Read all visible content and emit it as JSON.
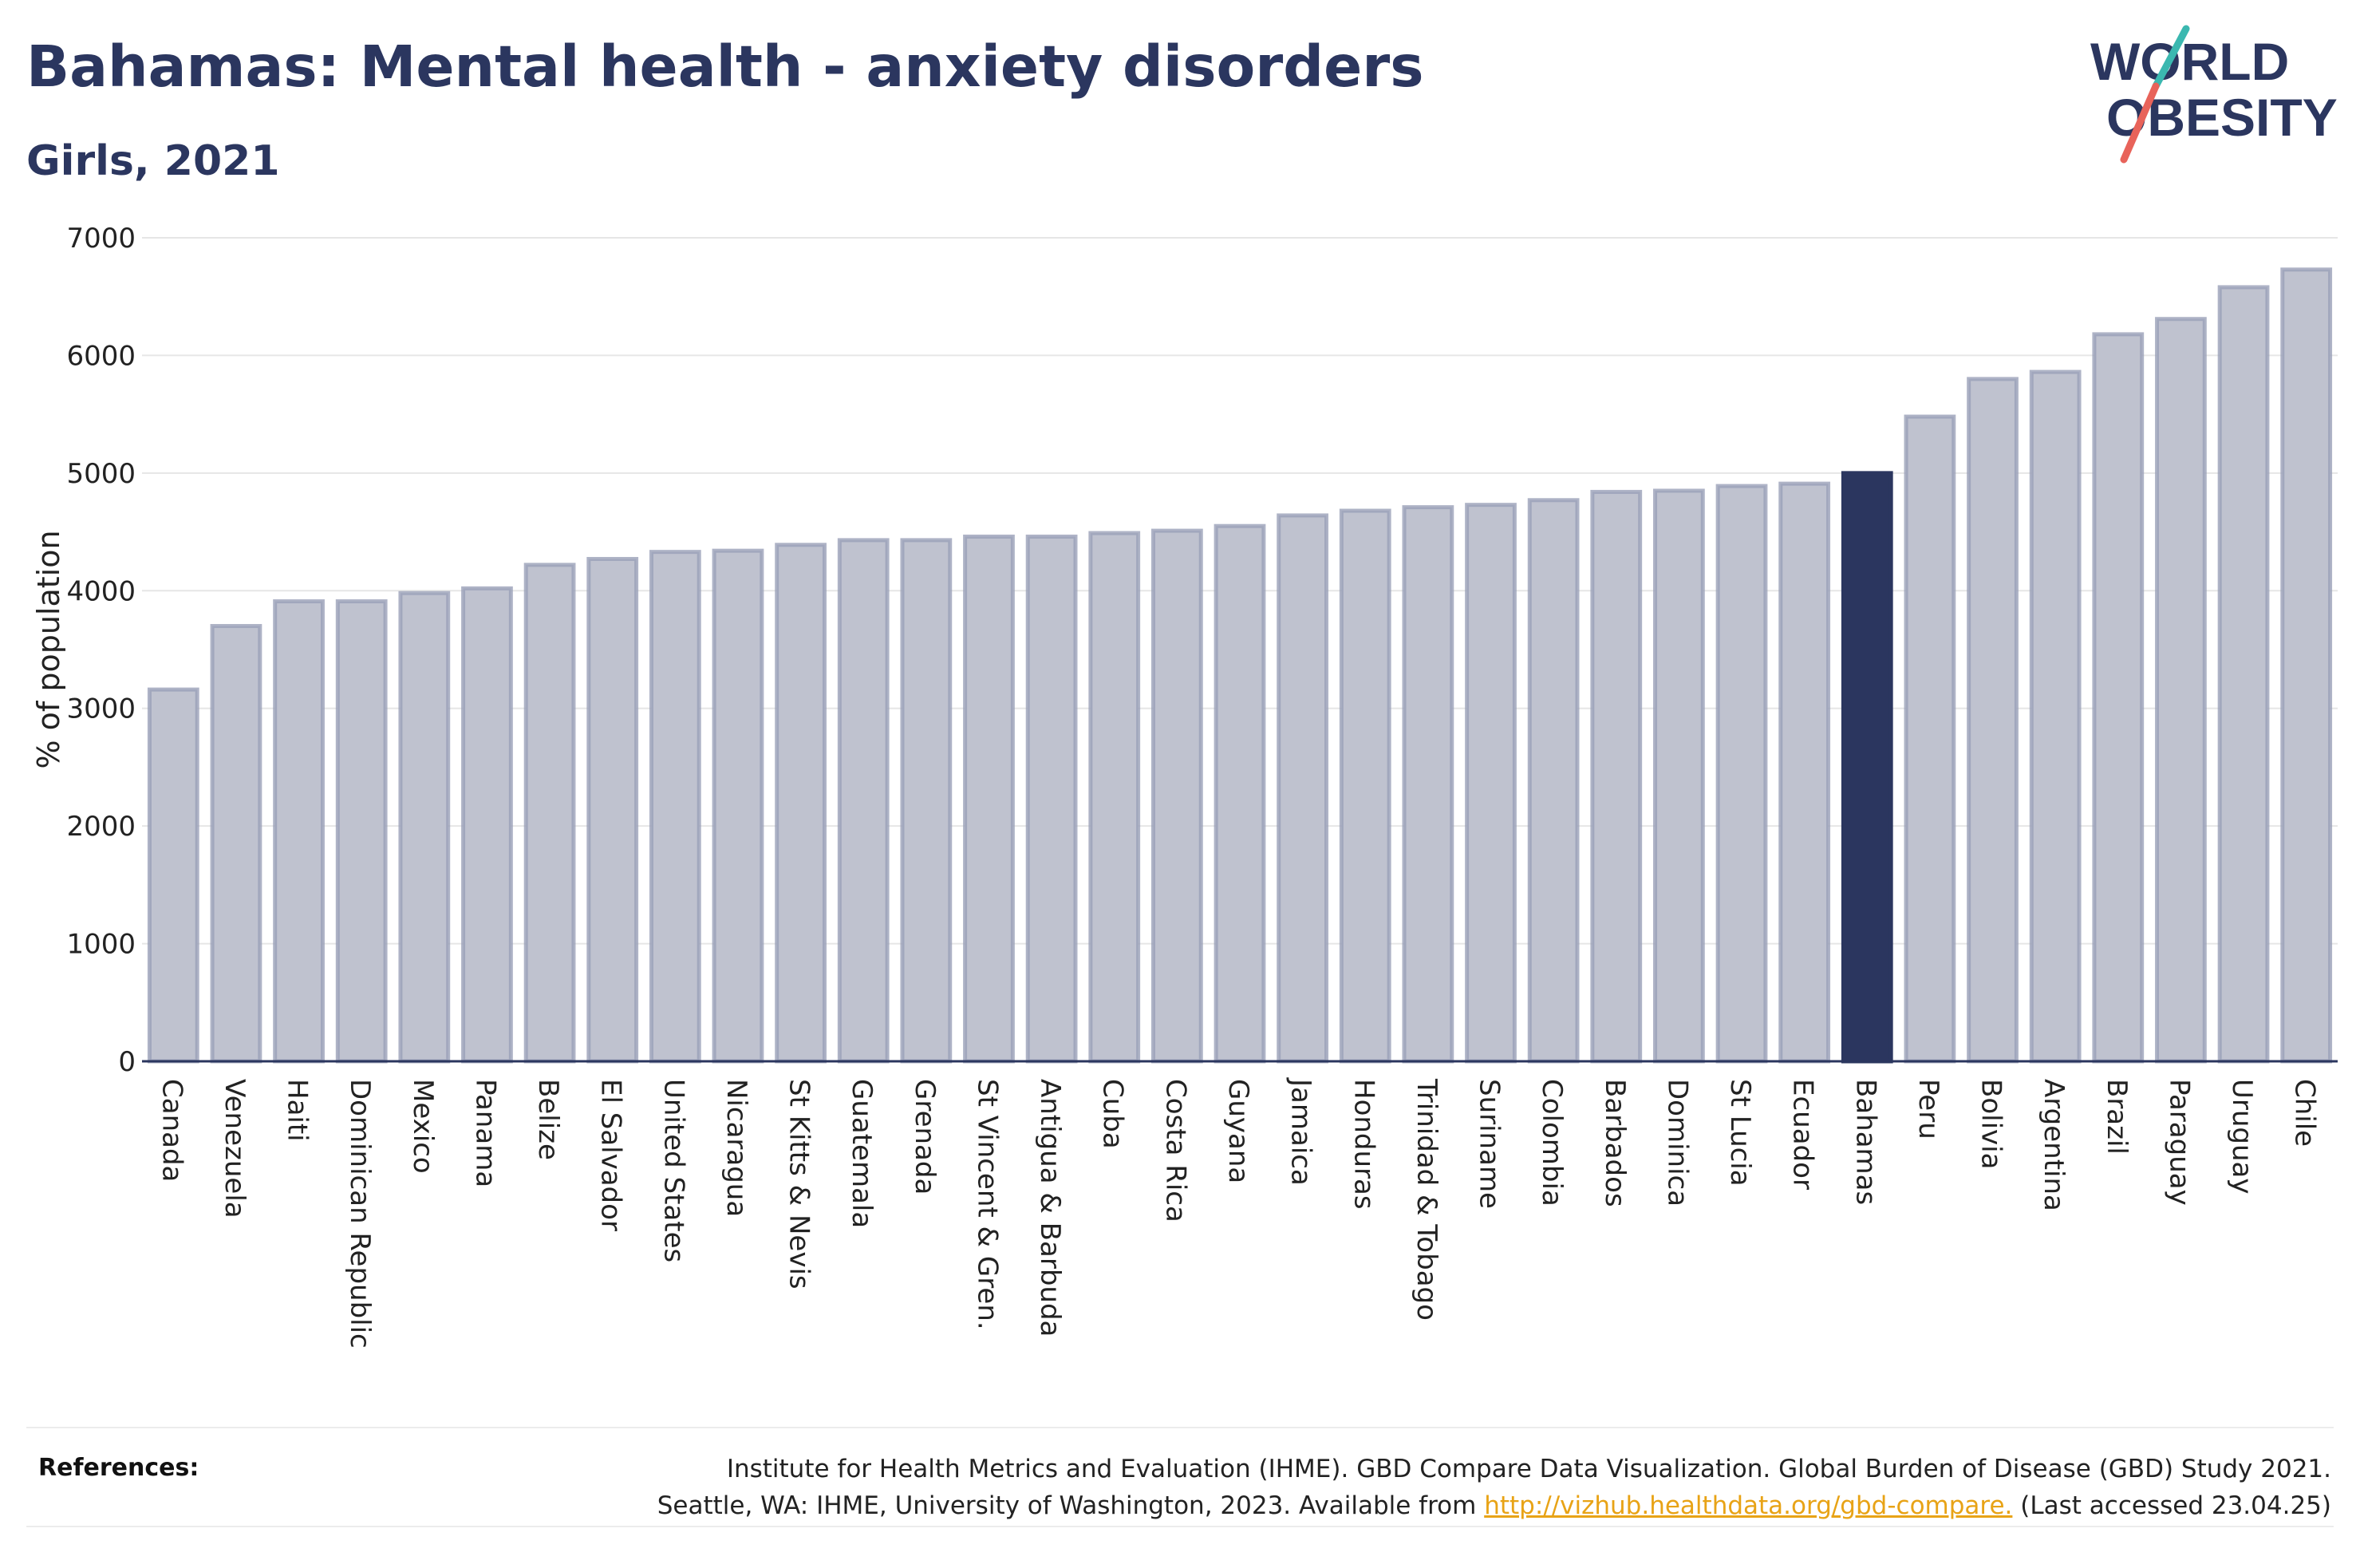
{
  "header": {
    "title": "Bahamas: Mental health - anxiety disorders",
    "subtitle": "Girls, 2021"
  },
  "logo": {
    "line1": "WORLD",
    "line2": "OBESITY",
    "slash_colors": [
      "#3bb8b0",
      "#e8635a"
    ]
  },
  "colors": {
    "highlight": "#2b365f",
    "bar_fill": "#bfc2cf",
    "bar_stroke": "#9aa0b8",
    "link": "#e8a316"
  },
  "chart_data": {
    "type": "bar",
    "title": "Bahamas: Mental health - anxiety disorders",
    "subtitle": "Girls, 2021",
    "ylabel": "% of population",
    "xlabel": "",
    "ylim": [
      0,
      7000
    ],
    "yticks": [
      0,
      1000,
      2000,
      3000,
      4000,
      5000,
      6000,
      7000
    ],
    "grid": true,
    "highlight": "Bahamas",
    "categories": [
      "Canada",
      "Venezuela",
      "Haiti",
      "Dominican Republic",
      "Mexico",
      "Panama",
      "Belize",
      "El Salvador",
      "United States",
      "Nicaragua",
      "St Kitts & Nevis",
      "Guatemala",
      "Grenada",
      "St Vincent & Gren.",
      "Antigua & Barbuda",
      "Cuba",
      "Costa Rica",
      "Guyana",
      "Jamaica",
      "Honduras",
      "Trinidad & Tobago",
      "Suriname",
      "Colombia",
      "Barbados",
      "Dominica",
      "St Lucia",
      "Ecuador",
      "Bahamas",
      "Peru",
      "Bolivia",
      "Argentina",
      "Brazil",
      "Paraguay",
      "Uruguay",
      "Chile"
    ],
    "values": [
      3160,
      3700,
      3910,
      3910,
      3980,
      4020,
      4220,
      4270,
      4330,
      4340,
      4390,
      4430,
      4430,
      4460,
      4460,
      4490,
      4510,
      4550,
      4640,
      4680,
      4710,
      4730,
      4770,
      4840,
      4850,
      4890,
      4910,
      5000,
      5480,
      5800,
      5860,
      6180,
      6310,
      6580,
      6730
    ]
  },
  "references": {
    "label": "References:",
    "line1": "Institute for Health Metrics and Evaluation (IHME). GBD Compare Data Visualization. Global Burden of Disease (GBD) Study 2021.",
    "line2_before": "Seattle, WA: IHME, University of Washington, 2023. Available from ",
    "link_text": "http://vizhub.healthdata.org/gbd-compare.",
    "line2_after": " (Last accessed 23.04.25)"
  }
}
